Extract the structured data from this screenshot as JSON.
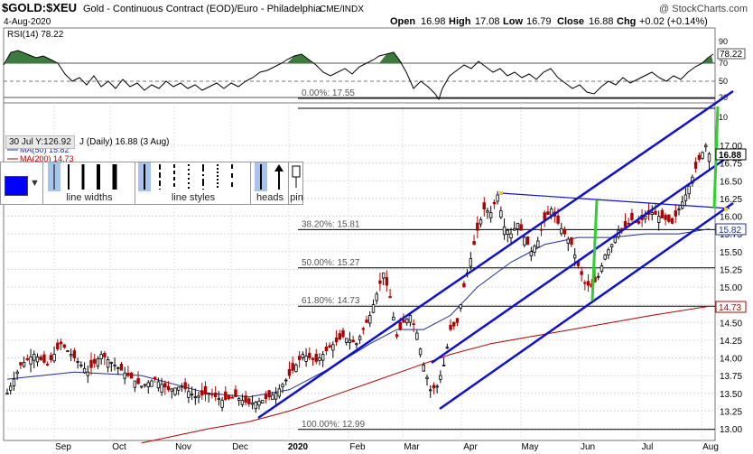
{
  "header": {
    "symbol": "$GOLD:$XEU",
    "description": "Gold - Continuous Contract (EOD)/Euro - Philadelphia",
    "exchange": "CME/INDX",
    "watermark": "@ StockCharts.com",
    "date": "4-Aug-2020",
    "open_label": "Open",
    "open": "16.98",
    "high_label": "High",
    "high": "17.08",
    "low_label": "Low",
    "low": "16.79",
    "close_label": "Close",
    "close": "16.88",
    "chg_label": "Chg",
    "chg": "+0.02 (+0.14%)"
  },
  "rsi": {
    "label": "RSI(14) 78.22",
    "value_badge": "78.22",
    "ticks": [
      "90",
      "70",
      "50",
      "30",
      "10"
    ]
  },
  "legend": {
    "main": "J (Daily) 16.88 (3 Aug)",
    "ma50": "MA(50) 15.82",
    "ma200": "MA(200) 14.73",
    "tooltip": "30 Jul Y:126.92"
  },
  "toolbar": {
    "line_widths_label": "line widths",
    "line_styles_label": "line styles",
    "heads_label": "heads",
    "pin_label": "pin",
    "color": "#0000ff"
  },
  "price_badges": {
    "close": "16.88",
    "ma50": "15.82",
    "ma200": "14.73"
  },
  "fib_levels": [
    {
      "label": "0.00%: 17.55",
      "value": 17.55
    },
    {
      "label": "38.20%: 15.81",
      "value": 15.81
    },
    {
      "label": "50.00%: 15.27",
      "value": 15.27
    },
    {
      "label": "61.80%: 14.73",
      "value": 14.73
    },
    {
      "label": "100.00%: 12.99",
      "value": 12.99
    }
  ],
  "chart_data": {
    "type": "candlestick",
    "title": "$GOLD:$XEU Gold - Continuous Contract (EOD)/Euro - Philadelphia",
    "x_ticks": [
      "Sep",
      "Oct",
      "Nov",
      "Dec",
      "2020",
      "Feb",
      "Mar",
      "Apr",
      "May",
      "Jun",
      "Jul",
      "Aug"
    ],
    "y_ticks": [
      "17.00",
      "16.75",
      "16.50",
      "16.25",
      "16.00",
      "15.75",
      "15.50",
      "15.25",
      "15.00",
      "14.75",
      "14.50",
      "14.25",
      "14.00",
      "13.75",
      "13.50",
      "13.25",
      "13.00"
    ],
    "ylim": [
      12.9,
      17.7
    ],
    "price_path": [
      [
        0,
        13.5
      ],
      [
        4,
        13.9
      ],
      [
        8,
        14.05
      ],
      [
        12,
        13.9
      ],
      [
        16,
        14.2
      ],
      [
        20,
        14.0
      ],
      [
        24,
        13.8
      ],
      [
        28,
        14.05
      ],
      [
        32,
        13.9
      ],
      [
        36,
        13.75
      ],
      [
        40,
        13.6
      ],
      [
        44,
        13.7
      ],
      [
        48,
        13.55
      ],
      [
        52,
        13.6
      ],
      [
        56,
        13.45
      ],
      [
        60,
        13.5
      ],
      [
        64,
        13.4
      ],
      [
        68,
        13.45
      ],
      [
        72,
        13.35
      ],
      [
        76,
        13.4
      ],
      [
        80,
        13.5
      ],
      [
        84,
        13.75
      ],
      [
        88,
        14.05
      ],
      [
        92,
        13.95
      ],
      [
        96,
        14.15
      ],
      [
        100,
        14.3
      ],
      [
        104,
        14.2
      ],
      [
        108,
        14.6
      ],
      [
        110,
        14.9
      ],
      [
        112,
        15.2
      ],
      [
        114,
        14.85
      ],
      [
        116,
        14.3
      ],
      [
        118,
        14.5
      ],
      [
        120,
        14.6
      ],
      [
        122,
        14.35
      ],
      [
        124,
        13.9
      ],
      [
        126,
        13.55
      ],
      [
        128,
        13.6
      ],
      [
        130,
        13.9
      ],
      [
        132,
        14.4
      ],
      [
        134,
        14.5
      ],
      [
        136,
        15.0
      ],
      [
        138,
        15.4
      ],
      [
        140,
        15.8
      ],
      [
        142,
        16.1
      ],
      [
        144,
        16.05
      ],
      [
        146,
        16.3
      ],
      [
        148,
        15.85
      ],
      [
        150,
        15.75
      ],
      [
        152,
        15.9
      ],
      [
        154,
        15.7
      ],
      [
        156,
        15.5
      ],
      [
        158,
        15.65
      ],
      [
        160,
        15.95
      ],
      [
        162,
        16.1
      ],
      [
        164,
        15.9
      ],
      [
        166,
        15.75
      ],
      [
        168,
        15.6
      ],
      [
        170,
        15.3
      ],
      [
        172,
        15.05
      ],
      [
        174,
        15.0
      ],
      [
        176,
        15.15
      ],
      [
        178,
        15.45
      ],
      [
        180,
        15.6
      ],
      [
        182,
        15.8
      ],
      [
        184,
        15.85
      ],
      [
        186,
        15.95
      ],
      [
        188,
        15.9
      ],
      [
        190,
        16.0
      ],
      [
        192,
        16.05
      ],
      [
        194,
        16.0
      ],
      [
        196,
        15.95
      ],
      [
        198,
        15.9
      ],
      [
        200,
        16.1
      ],
      [
        202,
        16.3
      ],
      [
        204,
        16.55
      ],
      [
        206,
        16.8
      ],
      [
        208,
        17.0
      ],
      [
        209,
        16.88
      ]
    ],
    "ma50": [
      [
        0,
        13.7
      ],
      [
        20,
        13.8
      ],
      [
        40,
        13.75
      ],
      [
        60,
        13.5
      ],
      [
        72,
        13.45
      ],
      [
        84,
        13.55
      ],
      [
        96,
        13.85
      ],
      [
        108,
        14.2
      ],
      [
        116,
        14.4
      ],
      [
        124,
        14.4
      ],
      [
        132,
        14.6
      ],
      [
        140,
        15.0
      ],
      [
        150,
        15.35
      ],
      [
        160,
        15.6
      ],
      [
        170,
        15.7
      ],
      [
        180,
        15.7
      ],
      [
        190,
        15.75
      ],
      [
        200,
        15.75
      ],
      [
        209,
        15.82
      ]
    ],
    "ma200": [
      [
        40,
        12.8
      ],
      [
        60,
        13.0
      ],
      [
        72,
        13.1
      ],
      [
        84,
        13.25
      ],
      [
        96,
        13.45
      ],
      [
        108,
        13.65
      ],
      [
        120,
        13.85
      ],
      [
        132,
        14.05
      ],
      [
        144,
        14.2
      ],
      [
        156,
        14.3
      ],
      [
        168,
        14.4
      ],
      [
        180,
        14.5
      ],
      [
        192,
        14.6
      ],
      [
        209,
        14.73
      ]
    ]
  }
}
